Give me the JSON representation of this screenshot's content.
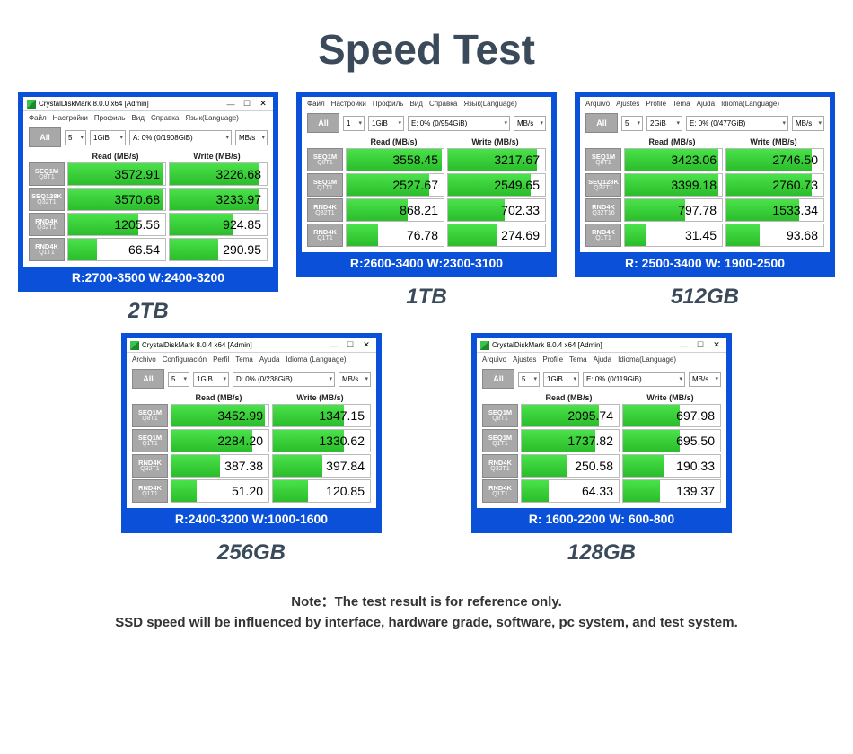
{
  "title": "Speed Test",
  "note1": "Note：The test result is for reference only.",
  "note2": "SSD speed will be influenced by interface, hardware grade, software, pc system, and test system.",
  "colors": {
    "frame": "#0a50d8",
    "bar_gradient_top": "#4ae24a",
    "bar_gradient_bottom": "#2bbd2b",
    "btn_gray": "#a8a8a8",
    "title_text": "#3a4a5a"
  },
  "labels": {
    "all": "All",
    "read_header": "Read (MB/s)",
    "write_header": "Write (MB/s)",
    "mbs": "MB/s"
  },
  "cards": [
    {
      "caption": "2TB",
      "summary": "R:2700-3500  W:2400-3200",
      "titlebar": "CrystalDiskMark 8.0.0 x64 [Admin]",
      "show_titlebar": true,
      "menu": [
        "Файл",
        "Настройки",
        "Профиль",
        "Вид",
        "Справка",
        "Язык(Language)"
      ],
      "sel1": "5",
      "sel2": "1GiB",
      "sel3": "A: 0% (0/1908GiB)",
      "sel4": "MB/s",
      "rows": [
        {
          "l1": "SEQ1M",
          "l2": "Q8T1",
          "read": "3572.91",
          "write": "3226.68",
          "rb": 98,
          "wb": 92
        },
        {
          "l1": "SEQ128K",
          "l2": "Q32T1",
          "read": "3570.68",
          "write": "3233.97",
          "rb": 98,
          "wb": 92
        },
        {
          "l1": "RND4K",
          "l2": "Q32T1",
          "read": "1205.56",
          "write": "924.85",
          "rb": 72,
          "wb": 65
        },
        {
          "l1": "RND4K",
          "l2": "Q1T1",
          "read": "66.54",
          "write": "290.95",
          "rb": 30,
          "wb": 50
        }
      ]
    },
    {
      "caption": "1TB",
      "summary": "R:2600-3400  W:2300-3100",
      "titlebar": "",
      "show_titlebar": false,
      "menu": [
        "Файл",
        "Настройки",
        "Профиль",
        "Вид",
        "Справка",
        "Язык(Language)"
      ],
      "sel1": "1",
      "sel2": "1GiB",
      "sel3": "E: 0% (0/954GiB)",
      "sel4": "MB/s",
      "rows": [
        {
          "l1": "SEQ1M",
          "l2": "Q8T1",
          "read": "3558.45",
          "write": "3217.67",
          "rb": 98,
          "wb": 92
        },
        {
          "l1": "SEQ1M",
          "l2": "Q1T1",
          "read": "2527.67",
          "write": "2549.65",
          "rb": 85,
          "wb": 85
        },
        {
          "l1": "RND4K",
          "l2": "Q32T1",
          "read": "868.21",
          "write": "702.33",
          "rb": 63,
          "wb": 58
        },
        {
          "l1": "RND4K",
          "l2": "Q1T1",
          "read": "76.78",
          "write": "274.69",
          "rb": 32,
          "wb": 50
        }
      ]
    },
    {
      "caption": "512GB",
      "summary": "R: 2500-3400 W: 1900-2500",
      "titlebar": "",
      "show_titlebar": false,
      "menu": [
        "Arquivo",
        "Ajustes",
        "Profile",
        "Tema",
        "Ajuda",
        "Idioma(Language)"
      ],
      "sel1": "5",
      "sel2": "2GiB",
      "sel3": "E: 0% (0/477GiB)",
      "sel4": "MB/s",
      "rows": [
        {
          "l1": "SEQ1M",
          "l2": "Q8T1",
          "read": "3423.06",
          "write": "2746.50",
          "rb": 96,
          "wb": 88
        },
        {
          "l1": "SEQ128K",
          "l2": "Q32T1",
          "read": "3399.18",
          "write": "2760.73",
          "rb": 96,
          "wb": 88
        },
        {
          "l1": "RND4K",
          "l2": "Q32T16",
          "read": "797.78",
          "write": "1533.34",
          "rb": 62,
          "wb": 75
        },
        {
          "l1": "RND4K",
          "l2": "Q1T1",
          "read": "31.45",
          "write": "93.68",
          "rb": 22,
          "wb": 34
        }
      ]
    },
    {
      "caption": "256GB",
      "summary": "R:2400-3200  W:1000-1600",
      "titlebar": "CrystalDiskMark 8.0.4 x64 [Admin]",
      "show_titlebar": true,
      "menu": [
        "Archivo",
        "Configuración",
        "Perfil",
        "Tema",
        "Ayuda",
        "Idioma (Language)"
      ],
      "sel1": "5",
      "sel2": "1GiB",
      "sel3": "D: 0% (0/238GiB)",
      "sel4": "MB/s",
      "rows": [
        {
          "l1": "SEQ1M",
          "l2": "Q8T1",
          "read": "3452.99",
          "write": "1347.15",
          "rb": 96,
          "wb": 73
        },
        {
          "l1": "SEQ1M",
          "l2": "Q1T1",
          "read": "2284.20",
          "write": "1330.62",
          "rb": 83,
          "wb": 73
        },
        {
          "l1": "RND4K",
          "l2": "Q32T1",
          "read": "387.38",
          "write": "397.84",
          "rb": 50,
          "wb": 51
        },
        {
          "l1": "RND4K",
          "l2": "Q1T1",
          "read": "51.20",
          "write": "120.85",
          "rb": 26,
          "wb": 36
        }
      ]
    },
    {
      "caption": "128GB",
      "summary": "R: 1600-2200  W: 600-800",
      "titlebar": "CrystalDiskMark 8.0.4 x64 [Admin]",
      "show_titlebar": true,
      "menu": [
        "Arquivo",
        "Ajustes",
        "Profile",
        "Tema",
        "Ajuda",
        "Idioma(Language)"
      ],
      "sel1": "5",
      "sel2": "1GiB",
      "sel3": "E: 0% (0/119GiB)",
      "sel4": "MB/s",
      "rows": [
        {
          "l1": "SEQ1M",
          "l2": "Q8T1",
          "read": "2095.74",
          "write": "697.98",
          "rb": 80,
          "wb": 58
        },
        {
          "l1": "SEQ1M",
          "l2": "Q1T1",
          "read": "1737.82",
          "write": "695.50",
          "rb": 76,
          "wb": 58
        },
        {
          "l1": "RND4K",
          "l2": "Q32T1",
          "read": "250.58",
          "write": "190.33",
          "rb": 46,
          "wb": 42
        },
        {
          "l1": "RND4K",
          "l2": "Q1T1",
          "read": "64.33",
          "write": "139.37",
          "rb": 28,
          "wb": 38
        }
      ]
    }
  ]
}
